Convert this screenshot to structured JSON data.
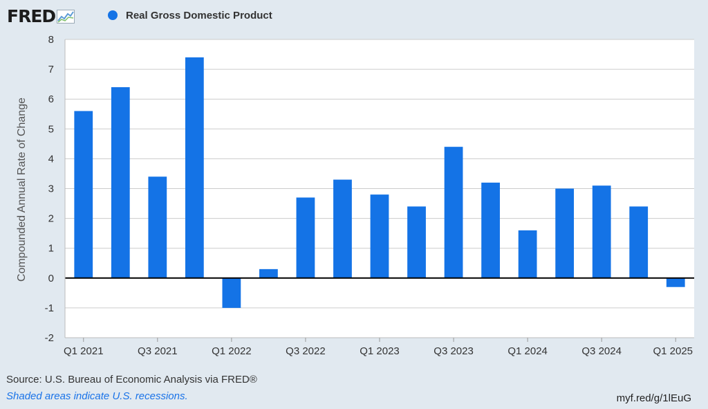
{
  "header": {
    "logo_text": "FRED",
    "legend_label": "Real Gross Domestic Product"
  },
  "colors": {
    "series": "#1473e6",
    "background": "#e1e9f0",
    "plot_background": "#ffffff",
    "grid": "#cccccc",
    "zero_line": "#000000",
    "note": "#1a73e8"
  },
  "chart_data": {
    "type": "bar",
    "title": "",
    "xlabel": "",
    "ylabel": "Compounded Annual Rate of Change",
    "ylim": [
      -2,
      8
    ],
    "yticks": [
      -2,
      -1,
      0,
      1,
      2,
      3,
      4,
      5,
      6,
      7,
      8
    ],
    "grid": true,
    "legend_position": "top-left",
    "categories": [
      "Q1 2021",
      "Q2 2021",
      "Q3 2021",
      "Q4 2021",
      "Q1 2022",
      "Q2 2022",
      "Q3 2022",
      "Q4 2022",
      "Q1 2023",
      "Q2 2023",
      "Q3 2023",
      "Q4 2023",
      "Q1 2024",
      "Q2 2024",
      "Q3 2024",
      "Q4 2024",
      "Q1 2025"
    ],
    "x_tick_labels": [
      "Q1 2021",
      "Q3 2021",
      "Q1 2022",
      "Q3 2022",
      "Q1 2023",
      "Q3 2023",
      "Q1 2024",
      "Q3 2024",
      "Q1 2025"
    ],
    "series": [
      {
        "name": "Real Gross Domestic Product",
        "values": [
          5.6,
          6.4,
          3.4,
          7.4,
          -1.0,
          0.3,
          2.7,
          3.3,
          2.8,
          2.4,
          4.4,
          3.2,
          1.6,
          3.0,
          3.1,
          2.4,
          -0.3
        ]
      }
    ]
  },
  "footer": {
    "source": "Source: U.S. Bureau of Economic Analysis via FRED®",
    "note": "Shaded areas indicate U.S. recessions.",
    "url": "myf.red/g/1lEuG"
  }
}
